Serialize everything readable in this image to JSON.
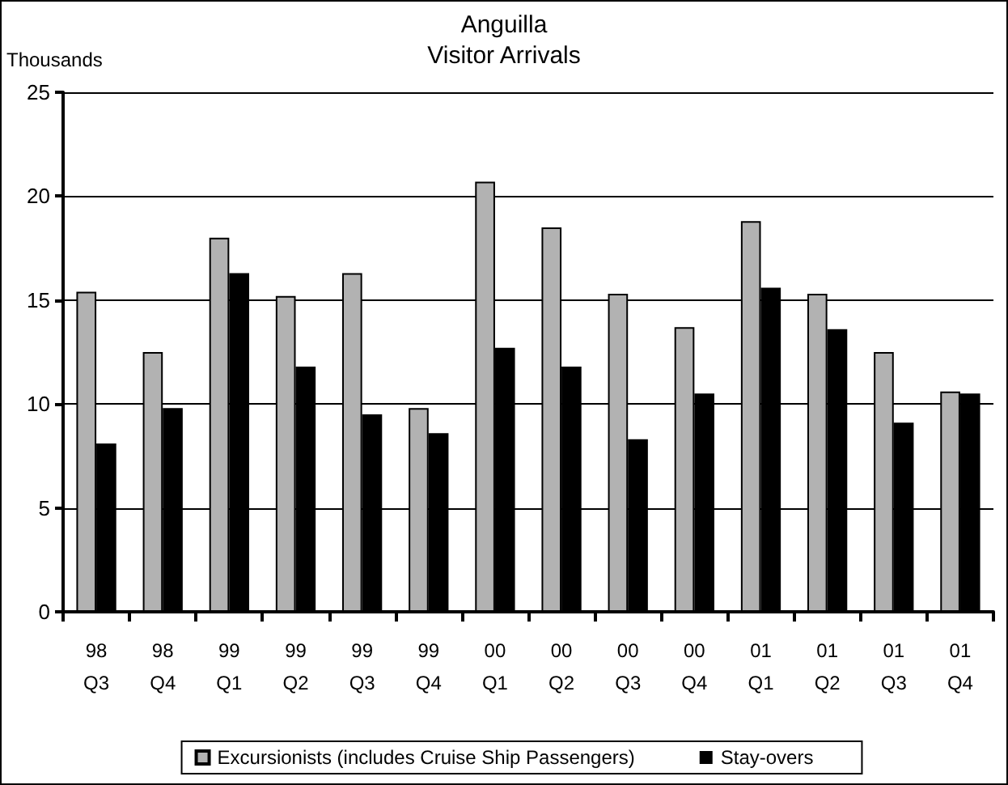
{
  "chart_data": {
    "type": "bar",
    "title": "Anguilla",
    "subtitle": "Visitor Arrivals",
    "ylabel": "Thousands",
    "categories": [
      "98\nQ3",
      "98\nQ4",
      "99\nQ1",
      "99\nQ2",
      "99\nQ3",
      "99\nQ4",
      "00\nQ1",
      "00\nQ2",
      "00\nQ3",
      "00\nQ4",
      "01\nQ1",
      "01\nQ2",
      "01\nQ3",
      "01\nQ4"
    ],
    "series": [
      {
        "name": "Excursionists (includes Cruise Ship Passengers)",
        "color": "#b2b2b2",
        "values": [
          15.4,
          12.5,
          18.0,
          15.2,
          16.3,
          9.8,
          20.7,
          18.5,
          15.3,
          13.7,
          18.8,
          15.3,
          12.5,
          10.6
        ]
      },
      {
        "name": "Stay-overs",
        "color": "#000000",
        "values": [
          8.1,
          9.8,
          16.3,
          11.8,
          9.5,
          8.6,
          12.7,
          11.8,
          8.3,
          10.5,
          15.6,
          13.6,
          9.1,
          10.5
        ]
      }
    ],
    "ylim": [
      0,
      25
    ],
    "yticks": [
      0,
      5,
      10,
      15,
      20,
      25
    ],
    "grid": "y",
    "legend": "bottom"
  }
}
